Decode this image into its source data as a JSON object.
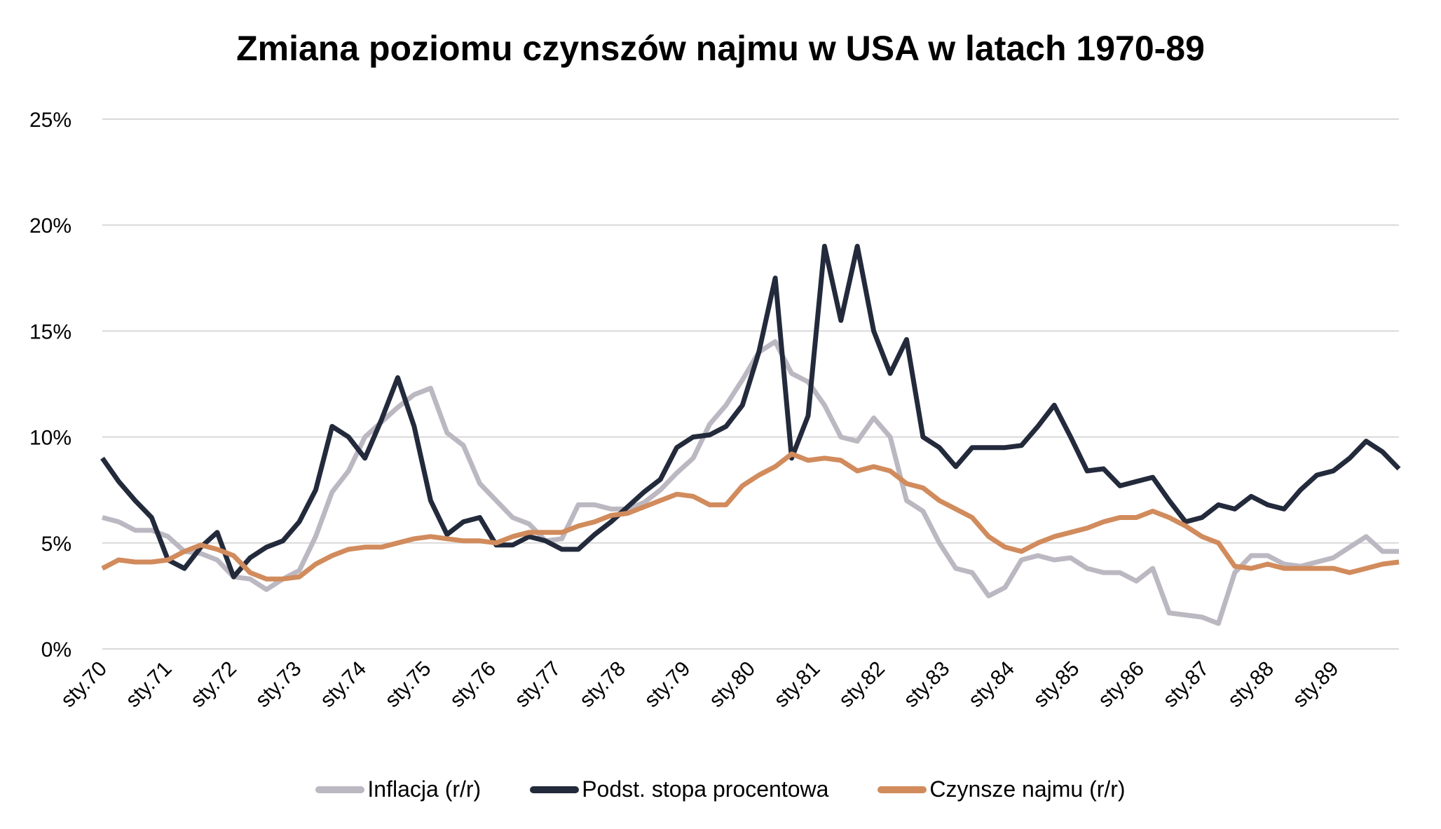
{
  "chart_data": {
    "type": "line",
    "title": "Zmiana poziomu czynszów najmu w USA w latach 1970-89",
    "xlabel": "",
    "ylabel": "",
    "ylim": [
      0,
      25
    ],
    "yticks": [
      "0%",
      "5%",
      "10%",
      "15%",
      "20%",
      "25%"
    ],
    "grid": true,
    "legend_position": "bottom",
    "x_tick_labels": [
      "sty.70",
      "sty.71",
      "sty.72",
      "sty.73",
      "sty.74",
      "sty.75",
      "sty.76",
      "sty.77",
      "sty.78",
      "sty.79",
      "sty.80",
      "sty.81",
      "sty.82",
      "sty.83",
      "sty.84",
      "sty.85",
      "sty.86",
      "sty.87",
      "sty.88",
      "sty.89"
    ],
    "x_frequency": "quarterly, 1970 Q1 - 1989 Q4",
    "series": [
      {
        "name": "Inflacja (r/r)",
        "color": "#bcb8c2",
        "values": [
          6.2,
          6.0,
          5.6,
          5.6,
          5.3,
          4.6,
          4.5,
          4.2,
          3.4,
          3.3,
          2.8,
          3.3,
          3.7,
          5.3,
          7.4,
          8.4,
          10.0,
          10.7,
          11.4,
          12.0,
          12.3,
          10.2,
          9.6,
          7.8,
          7.0,
          6.2,
          5.9,
          5.1,
          5.2,
          6.8,
          6.8,
          6.6,
          6.6,
          6.9,
          7.5,
          8.3,
          9.0,
          10.6,
          11.5,
          12.7,
          14.0,
          14.5,
          13.0,
          12.6,
          11.5,
          10.0,
          9.8,
          10.9,
          10.0,
          7.0,
          6.5,
          5.0,
          3.8,
          3.6,
          2.5,
          2.9,
          4.2,
          4.4,
          4.2,
          4.3,
          3.8,
          3.6,
          3.6,
          3.2,
          3.8,
          1.7,
          1.6,
          1.5,
          1.2,
          3.6,
          4.4,
          4.4,
          4.0,
          3.9,
          4.1,
          4.3,
          4.8,
          5.3,
          4.6,
          4.6
        ]
      },
      {
        "name": "Podst. stopa procentowa",
        "color": "#232a3b",
        "values": [
          9.0,
          7.9,
          7.0,
          6.2,
          4.2,
          3.8,
          4.8,
          5.5,
          3.4,
          4.3,
          4.8,
          5.1,
          6.0,
          7.5,
          10.5,
          10.0,
          9.0,
          10.8,
          12.8,
          10.5,
          7.0,
          5.4,
          6.0,
          6.2,
          4.9,
          4.9,
          5.3,
          5.1,
          4.7,
          4.7,
          5.4,
          6.0,
          6.7,
          7.4,
          8.0,
          9.5,
          10.0,
          10.1,
          10.5,
          11.5,
          14.0,
          17.5,
          9.0,
          11.0,
          19.0,
          15.5,
          19.0,
          15.0,
          13.0,
          14.6,
          10.0,
          9.5,
          8.6,
          9.5,
          9.5,
          9.5,
          9.6,
          10.5,
          11.5,
          10.0,
          8.4,
          8.5,
          7.7,
          7.9,
          8.1,
          7.0,
          6.0,
          6.2,
          6.8,
          6.6,
          7.2,
          6.8,
          6.6,
          7.5,
          8.2,
          8.4,
          9.0,
          9.8,
          9.3,
          8.5
        ]
      },
      {
        "name": "Czynsze najmu (r/r)",
        "color": "#d18b5c",
        "values": [
          3.8,
          4.2,
          4.1,
          4.1,
          4.2,
          4.6,
          4.9,
          4.7,
          4.4,
          3.6,
          3.3,
          3.3,
          3.4,
          4.0,
          4.4,
          4.7,
          4.8,
          4.8,
          5.0,
          5.2,
          5.3,
          5.2,
          5.1,
          5.1,
          5.0,
          5.3,
          5.5,
          5.5,
          5.5,
          5.8,
          6.0,
          6.3,
          6.4,
          6.7,
          7.0,
          7.3,
          7.2,
          6.8,
          6.8,
          7.7,
          8.2,
          8.6,
          9.2,
          8.9,
          9.0,
          8.9,
          8.4,
          8.6,
          8.4,
          7.8,
          7.6,
          7.0,
          6.6,
          6.2,
          5.3,
          4.8,
          4.6,
          5.0,
          5.3,
          5.5,
          5.7,
          6.0,
          6.2,
          6.2,
          6.5,
          6.2,
          5.8,
          5.3,
          5.0,
          3.9,
          3.8,
          4.0,
          3.8,
          3.8,
          3.8,
          3.8,
          3.6,
          3.8,
          4.0,
          4.1
        ]
      }
    ]
  }
}
